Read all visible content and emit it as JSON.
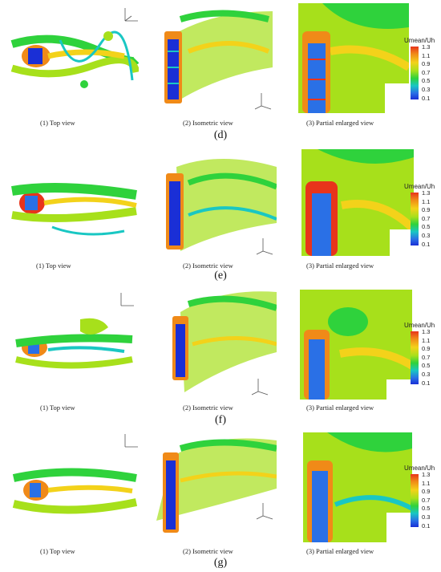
{
  "groups": [
    {
      "letter": "(d)",
      "captions": [
        "(1) Top view",
        "(2) Isometric view",
        "(3) Partial enlarged view"
      ]
    },
    {
      "letter": "(e)",
      "captions": [
        "(1) Top view",
        "(2) Isometric view",
        "(3) Partial enlarged view"
      ]
    },
    {
      "letter": "(f)",
      "captions": [
        "(1) Top view",
        "(2) Isometric view",
        "(3) Partial enlarged view"
      ]
    },
    {
      "letter": "(g)",
      "captions": [
        "(1) Top view",
        "(2) Isometric view",
        "(3) Partial enlarged view"
      ]
    }
  ],
  "legend": {
    "title": "Umean/Uh",
    "ticks": [
      "1.3",
      "1.1",
      "0.9",
      "0.7",
      "0.5",
      "0.3",
      "0.1"
    ]
  },
  "colors": {
    "red": "#e8341b",
    "orange": "#f08a18",
    "yellow": "#f3d21a",
    "lime": "#a7e01b",
    "green": "#2fd23c",
    "cyan": "#19c7c3",
    "blue": "#1a2fd6"
  }
}
